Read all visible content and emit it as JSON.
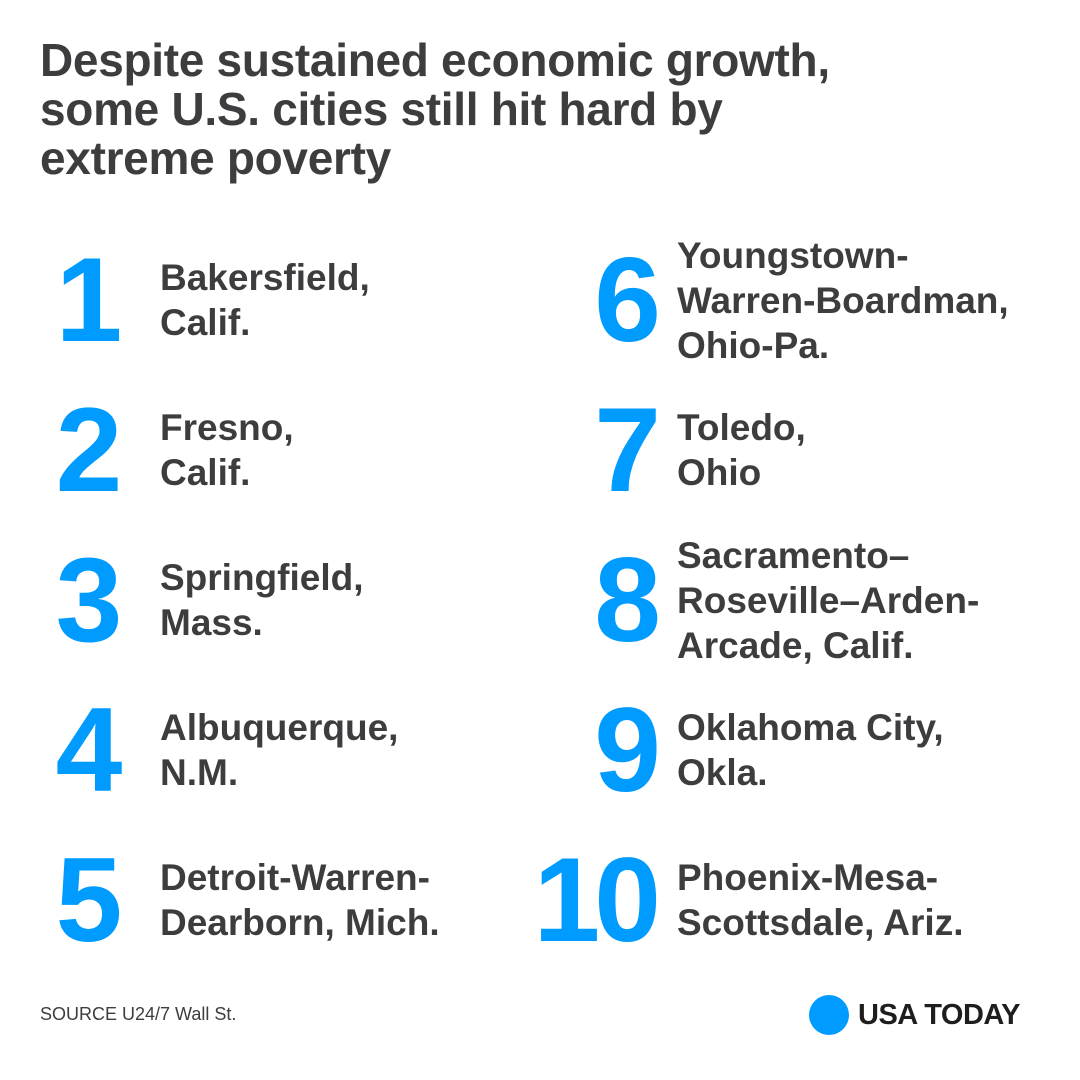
{
  "header": {
    "title_lines": [
      "Despite sustained economic growth,",
      "some U.S. cities still hit hard by",
      "extreme poverty"
    ]
  },
  "items": [
    {
      "rank": 1,
      "lines": [
        "Bakersfield,",
        "Calif."
      ]
    },
    {
      "rank": 2,
      "lines": [
        "Fresno,",
        "Calif."
      ]
    },
    {
      "rank": 3,
      "lines": [
        "Springfield,",
        "Mass."
      ]
    },
    {
      "rank": 4,
      "lines": [
        "Albuquerque,",
        "N.M."
      ]
    },
    {
      "rank": 5,
      "lines": [
        "Detroit-Warren-",
        "Dearborn, Mich."
      ]
    },
    {
      "rank": 6,
      "lines": [
        "Youngstown-",
        "Warren-Boardman,",
        "Ohio-Pa."
      ]
    },
    {
      "rank": 7,
      "lines": [
        "Toledo,",
        "Ohio"
      ]
    },
    {
      "rank": 8,
      "lines": [
        "Sacramento–",
        "Roseville–Arden-",
        "Arcade, Calif."
      ]
    },
    {
      "rank": 9,
      "lines": [
        "Oklahoma City,",
        "Okla."
      ]
    },
    {
      "rank": 10,
      "lines": [
        "Phoenix-Mesa-",
        "Scottsdale, Ariz."
      ]
    }
  ],
  "footer": {
    "source": "SOURCE U24/7 Wall St.",
    "brand": "USA TODAY"
  }
}
